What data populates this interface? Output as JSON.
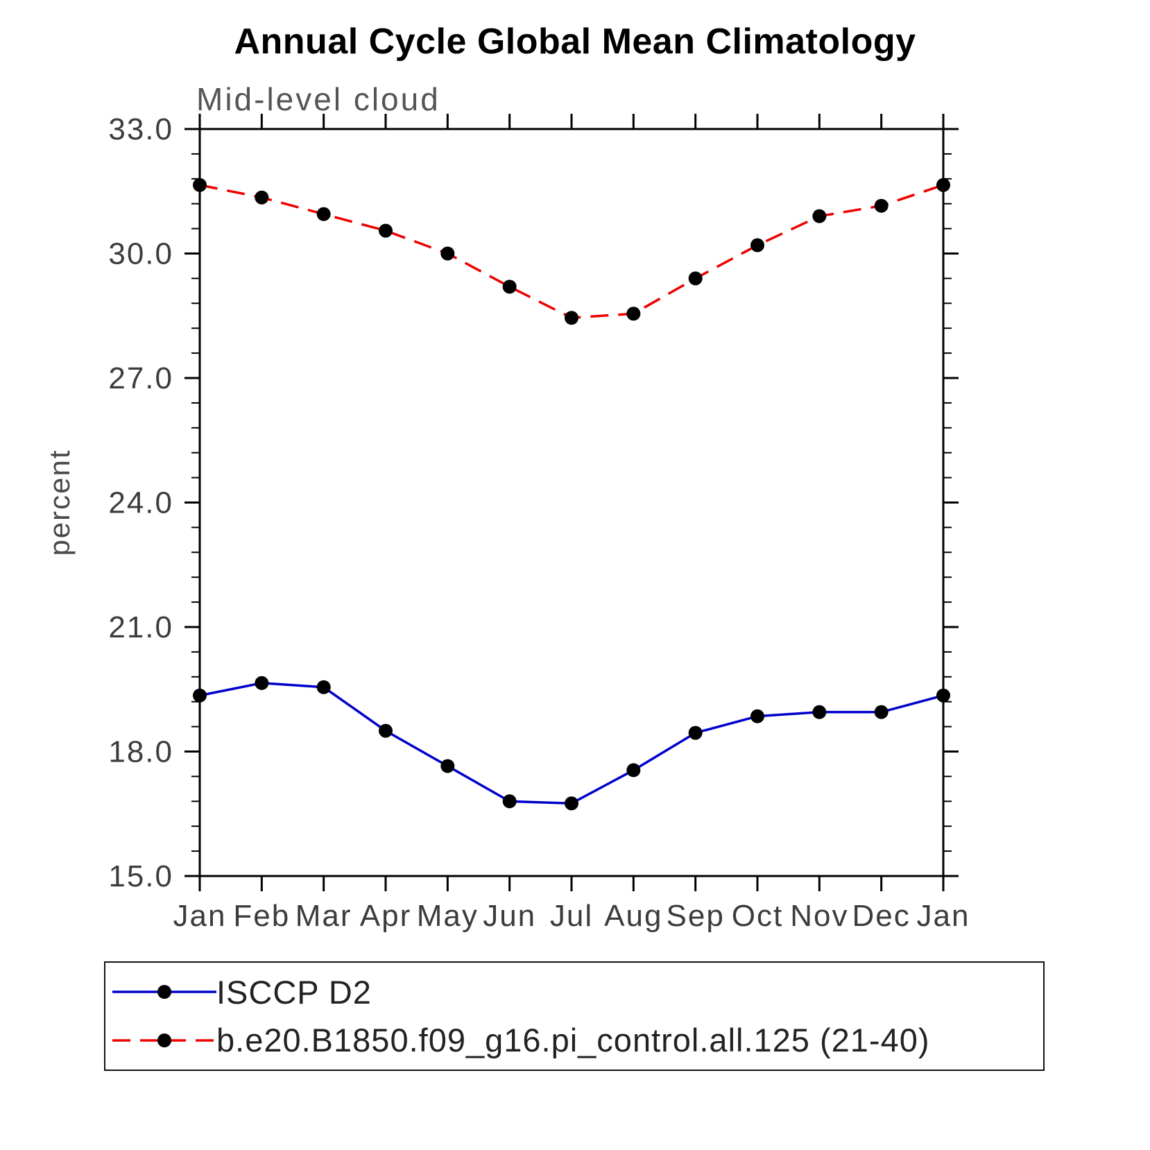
{
  "title": "Annual Cycle Global Mean Climatology",
  "subtitle": "Mid-level cloud",
  "ylabel": "percent",
  "chart_data": {
    "type": "line",
    "title": "Annual Cycle Global Mean Climatology",
    "subtitle": "Mid-level cloud",
    "xlabel": "",
    "ylabel": "percent",
    "categories": [
      "Jan",
      "Feb",
      "Mar",
      "Apr",
      "May",
      "Jun",
      "Jul",
      "Aug",
      "Sep",
      "Oct",
      "Nov",
      "Dec",
      "Jan"
    ],
    "ylim": [
      15.0,
      33.0
    ],
    "yticks": [
      15.0,
      18.0,
      21.0,
      24.0,
      27.0,
      30.0,
      33.0
    ],
    "ytick_labels": [
      "15.0",
      "18.0",
      "21.0",
      "24.0",
      "27.0",
      "30.0",
      "33.0"
    ],
    "minor_tick_step": 0.6,
    "grid": false,
    "legend_position": "bottom",
    "marker": {
      "shape": "circle",
      "color": "#000000"
    },
    "series": [
      {
        "name": "ISCCP D2",
        "color": "#0000cc",
        "style": "solid",
        "values": [
          19.35,
          19.65,
          19.55,
          18.5,
          17.65,
          16.8,
          16.75,
          17.55,
          18.45,
          18.85,
          18.95,
          18.95,
          19.35
        ]
      },
      {
        "name": "b.e20.B1850.f09_g16.pi_control.all.125 (21-40)",
        "color": "#ee0000",
        "style": "dashed",
        "values": [
          31.65,
          31.35,
          30.95,
          30.55,
          30.0,
          29.2,
          28.45,
          28.55,
          29.4,
          30.2,
          30.9,
          31.15,
          31.65
        ]
      }
    ]
  }
}
